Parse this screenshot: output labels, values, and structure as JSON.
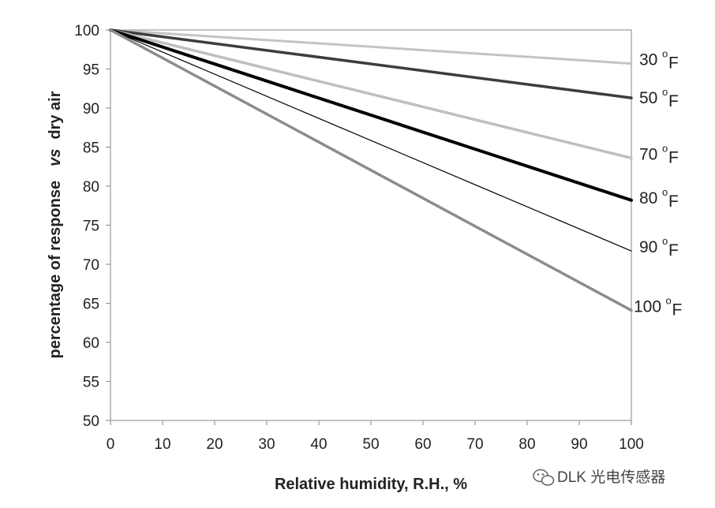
{
  "chart_data": {
    "type": "line",
    "xlabel": "Relative humidity, R.H., %",
    "ylabel_main": "percentage of response",
    "ylabel_italic": "vs",
    "ylabel_tail": "dry air",
    "xlim": [
      0,
      100
    ],
    "ylim": [
      50,
      100
    ],
    "xticks": [
      "0",
      "10",
      "20",
      "30",
      "40",
      "50",
      "60",
      "70",
      "80",
      "90",
      "100"
    ],
    "yticks": [
      "50",
      "55",
      "60",
      "65",
      "70",
      "75",
      "80",
      "85",
      "90",
      "95",
      "100"
    ],
    "grid": false,
    "series": [
      {
        "name": "30",
        "unit": "F",
        "x": [
          0,
          100
        ],
        "y": [
          100,
          95.7
        ],
        "color": "#c4c4c4"
      },
      {
        "name": "50",
        "unit": "F",
        "x": [
          0,
          100
        ],
        "y": [
          100,
          91.3
        ],
        "color": "#3d3d3d"
      },
      {
        "name": "70",
        "unit": "F",
        "x": [
          0,
          100
        ],
        "y": [
          100,
          83.6
        ],
        "color": "#bfbfbf"
      },
      {
        "name": "80",
        "unit": "F",
        "x": [
          0,
          100
        ],
        "y": [
          100,
          78.2
        ],
        "color": "#000000"
      },
      {
        "name": "90",
        "unit": "F",
        "x": [
          0,
          100
        ],
        "y": [
          100,
          71.7
        ],
        "color": "#000000"
      },
      {
        "name": "100",
        "unit": "F",
        "x": [
          0,
          100
        ],
        "y": [
          100,
          64.1
        ],
        "color": "#8c8c8c"
      }
    ]
  },
  "degree_symbol": "o",
  "watermark": {
    "icon": "wechat-icon",
    "text": "DLK 光电传感器"
  }
}
